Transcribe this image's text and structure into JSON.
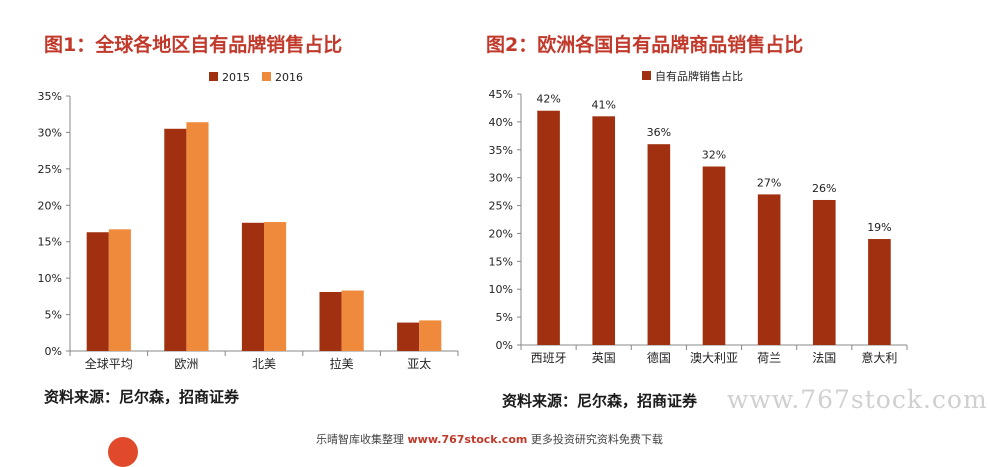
{
  "chart_data": [
    {
      "type": "bar",
      "title": "图1：全球各地区自有品牌销售占比",
      "categories": [
        "全球平均",
        "欧洲",
        "北美",
        "拉美",
        "亚太"
      ],
      "series": [
        {
          "name": "2015",
          "values": [
            16.3,
            30.5,
            17.6,
            8.1,
            3.9
          ],
          "color": "#a0300f"
        },
        {
          "name": "2016",
          "values": [
            16.7,
            31.4,
            17.7,
            8.3,
            4.2
          ],
          "color": "#ef8a3c"
        }
      ],
      "ylim": [
        0,
        35
      ],
      "yticks": [
        "0%",
        "5%",
        "10%",
        "15%",
        "20%",
        "25%",
        "30%",
        "35%"
      ],
      "legend": "top"
    },
    {
      "type": "bar",
      "title": "图2：欧洲各国自有品牌商品销售占比",
      "categories": [
        "西班牙",
        "英国",
        "德国",
        "澳大利亚",
        "荷兰",
        "法国",
        "意大利"
      ],
      "series": [
        {
          "name": "自有品牌销售占比",
          "values": [
            42,
            41,
            36,
            32,
            27,
            26,
            19
          ],
          "color": "#a0300f"
        }
      ],
      "data_labels": [
        "42%",
        "41%",
        "36%",
        "32%",
        "27%",
        "26%",
        "19%"
      ],
      "ylim": [
        0,
        45
      ],
      "yticks": [
        "0%",
        "5%",
        "10%",
        "15%",
        "20%",
        "25%",
        "30%",
        "35%",
        "40%",
        "45%"
      ],
      "legend": "top"
    }
  ],
  "sources": {
    "left": "资料来源：尼尔森，招商证券",
    "right": "资料来源：尼尔森，招商证券"
  },
  "watermark": "www.767stock.com",
  "footer": {
    "prefix": "乐晴智库收集整理",
    "brand": "www.767stock.com",
    "suffix": "更多投资研究资料免费下载"
  }
}
